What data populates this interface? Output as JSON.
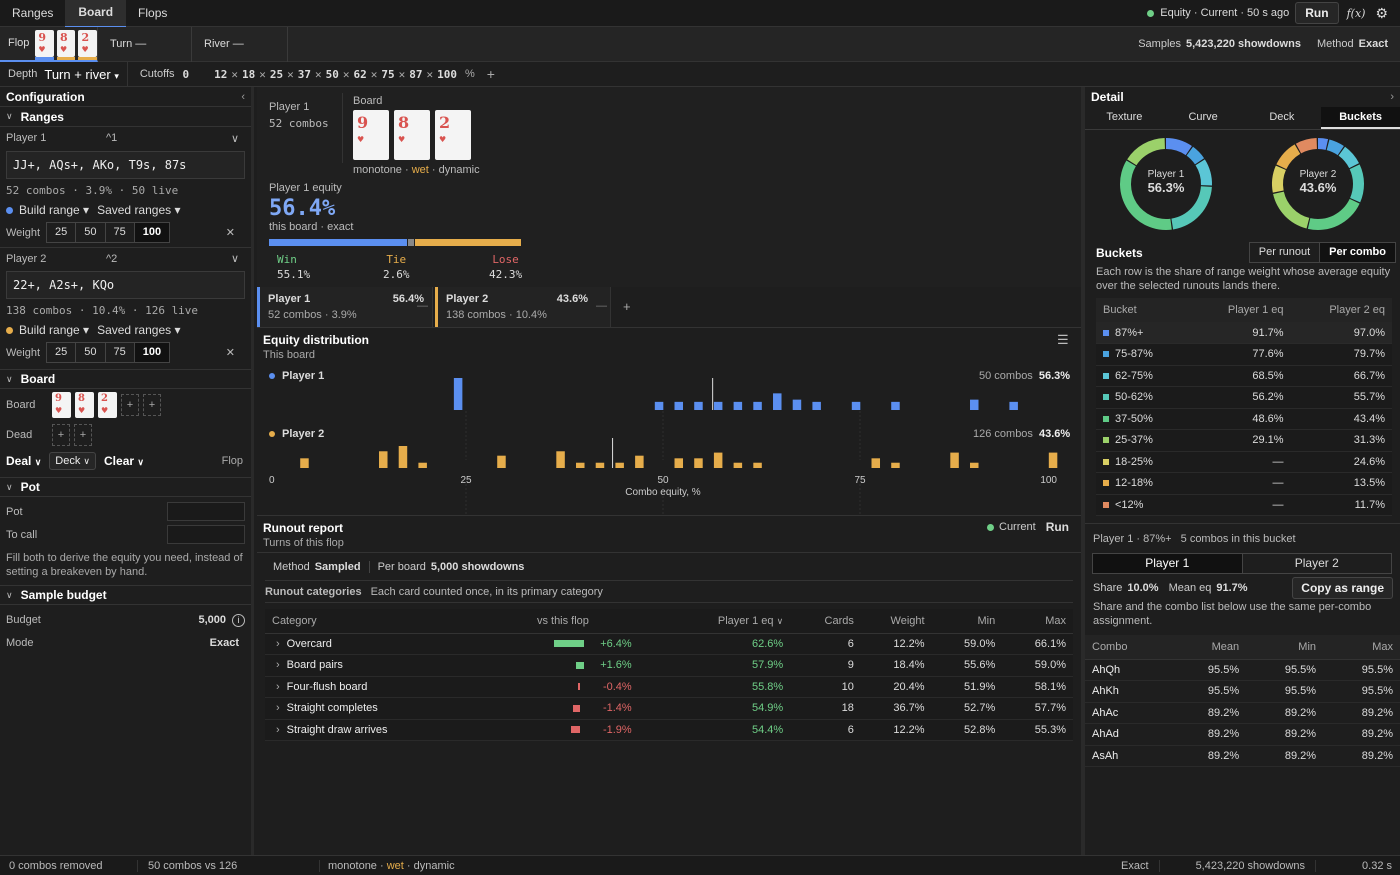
{
  "topnav": {
    "tabs": [
      "Ranges",
      "Board",
      "Flops"
    ],
    "active": "Board",
    "status": "Equity · Current · 50 s ago",
    "run": "Run",
    "fx": "f(x)"
  },
  "streets": {
    "flop": "Flop",
    "turn": "Turn —",
    "river": "River —",
    "samples_label": "Samples",
    "samples": "5,423,220 showdowns",
    "method_label": "Method",
    "method": "Exact"
  },
  "depthbar": {
    "depth_label": "Depth",
    "depth": "Turn + river",
    "cutoffs_label": "Cutoffs",
    "cutoffs": [
      "0",
      "12",
      "18",
      "25",
      "37",
      "50",
      "62",
      "75",
      "87",
      "100"
    ],
    "pct": "%"
  },
  "config": {
    "title": "Configuration",
    "ranges_title": "Ranges",
    "p1": {
      "label": "Player 1",
      "shortcut": "^1",
      "range": "JJ+, AQs+, AKo, T9s, 87s",
      "stats": "52 combos · 3.9% · 50 live",
      "dot": "#5b8ff0"
    },
    "p2": {
      "label": "Player 2",
      "shortcut": "^2",
      "range": "22+, A2s+, KQo",
      "stats": "138 combos · 10.4% · 126 live",
      "dot": "#e6ad4b"
    },
    "build": "Build range ▾",
    "saved": "Saved ranges ▾",
    "weight": "Weight",
    "weights": [
      "25",
      "50",
      "75",
      "100"
    ],
    "board_title": "Board",
    "board_label": "Board",
    "dead_label": "Dead",
    "deal": "Deal",
    "deck": "Deck",
    "clear": "Clear",
    "street": "Flop",
    "pot_title": "Pot",
    "pot_label": "Pot",
    "tocall_label": "To call",
    "pot_hint": "Fill both to derive the equity you need, instead of setting a breakeven by hand.",
    "budget_title": "Sample budget",
    "budget_label": "Budget",
    "budget": "5,000",
    "mode_label": "Mode",
    "mode": "Exact"
  },
  "cards": [
    {
      "rank": "9",
      "suit": "♥"
    },
    {
      "rank": "8",
      "suit": "♥"
    },
    {
      "rank": "2",
      "suit": "♥"
    }
  ],
  "summary": {
    "p1": "Player 1",
    "combos": "52 combos",
    "board_label": "Board",
    "texture": [
      "monotone",
      "wet",
      "dynamic"
    ],
    "eq_label": "Player 1 equity",
    "equity": "56.4%",
    "eq_sub": "this board · exact",
    "win_label": "Win",
    "win": "55.1%",
    "tie_label": "Tie",
    "tie": "2.6%",
    "lose_label": "Lose",
    "lose": "42.3%",
    "win_f": 0.551,
    "tie_f": 0.026
  },
  "players": [
    {
      "name": "Player 1",
      "eq": "56.4%",
      "sub": "52 combos · 3.9%",
      "color": "#5b8ff0"
    },
    {
      "name": "Player 2",
      "eq": "43.6%",
      "sub": "138 combos · 10.4%",
      "color": "#e6ad4b"
    }
  ],
  "dist": {
    "title": "Equity distribution",
    "sub": "This board",
    "p1": "Player 1",
    "p1_stat": "50 combos",
    "p1_eq": "56.3%",
    "p2": "Player 2",
    "p2_stat": "126 combos",
    "p2_eq": "43.6%",
    "xlabel": "Combo equity, %",
    "ticks": [
      "0",
      "25",
      "50",
      "75",
      "100"
    ]
  },
  "chart_data": {
    "type": "bar",
    "xlabel": "Combo equity, %",
    "xlim": [
      0,
      100
    ],
    "series": [
      {
        "name": "Player 1",
        "mean": 56.3,
        "bins": [
          [
            24,
            1.0
          ],
          [
            49.5,
            0.22
          ],
          [
            52,
            0.22
          ],
          [
            54.5,
            0.22
          ],
          [
            57,
            0.22
          ],
          [
            59.5,
            0.22
          ],
          [
            62,
            0.22
          ],
          [
            64.5,
            0.45
          ],
          [
            67,
            0.28
          ],
          [
            69.5,
            0.22
          ],
          [
            74.5,
            0.22
          ],
          [
            79.5,
            0.22
          ],
          [
            89.5,
            0.28
          ],
          [
            94.5,
            0.22
          ]
        ]
      },
      {
        "name": "Player 2",
        "mean": 43.6,
        "bins": [
          [
            4.5,
            0.22
          ],
          [
            14.5,
            0.38
          ],
          [
            17,
            0.5
          ],
          [
            19.5,
            0.12
          ],
          [
            29.5,
            0.28
          ],
          [
            37,
            0.38
          ],
          [
            39.5,
            0.12
          ],
          [
            42,
            0.12
          ],
          [
            44.5,
            0.12
          ],
          [
            47,
            0.28
          ],
          [
            52,
            0.22
          ],
          [
            54.5,
            0.22
          ],
          [
            57,
            0.35
          ],
          [
            59.5,
            0.12
          ],
          [
            62,
            0.12
          ],
          [
            77,
            0.22
          ],
          [
            79.5,
            0.12
          ],
          [
            87,
            0.35
          ],
          [
            89.5,
            0.12
          ],
          [
            99.5,
            0.35
          ]
        ]
      }
    ]
  },
  "runout": {
    "title": "Runout report",
    "sub": "Turns of this flop",
    "current": "Current",
    "run": "Run",
    "method_label": "Method",
    "method": "Sampled",
    "perboard_label": "Per board",
    "perboard": "5,000 showdowns",
    "cat_label": "Runout categories",
    "cat_note": "Each card counted once, in its primary category",
    "headers": [
      "Category",
      "vs this flop",
      "Player 1 eq",
      "Cards",
      "Weight",
      "Min",
      "Max"
    ],
    "rows": [
      {
        "cat": "Overcard",
        "delta": "+6.4%",
        "dv": 6.4,
        "eq": "62.6%",
        "cards": "6",
        "weight": "12.2%",
        "min": "59.0%",
        "max": "66.1%"
      },
      {
        "cat": "Board pairs",
        "delta": "+1.6%",
        "dv": 1.6,
        "eq": "57.9%",
        "cards": "9",
        "weight": "18.4%",
        "min": "55.6%",
        "max": "59.0%"
      },
      {
        "cat": "Four-flush board",
        "delta": "-0.4%",
        "dv": -0.4,
        "eq": "55.8%",
        "cards": "10",
        "weight": "20.4%",
        "min": "51.9%",
        "max": "58.1%"
      },
      {
        "cat": "Straight completes",
        "delta": "-1.4%",
        "dv": -1.4,
        "eq": "54.9%",
        "cards": "18",
        "weight": "36.7%",
        "min": "52.7%",
        "max": "57.7%"
      },
      {
        "cat": "Straight draw arrives",
        "delta": "-1.9%",
        "dv": -1.9,
        "eq": "54.4%",
        "cards": "6",
        "weight": "12.2%",
        "min": "52.8%",
        "max": "55.3%"
      }
    ]
  },
  "detail": {
    "title": "Detail",
    "tabs": [
      "Texture",
      "Curve",
      "Deck",
      "Buckets"
    ],
    "active": "Buckets",
    "donut1": {
      "name": "Player 1",
      "value": "56.3%"
    },
    "donut2": {
      "name": "Player 2",
      "value": "43.6%"
    },
    "buckets_title": "Buckets",
    "per_runout": "Per runout",
    "per_combo": "Per combo",
    "note": "Each row is the share of range weight whose average equity over the selected runouts lands there.",
    "bheaders": [
      "Bucket",
      "Player 1 eq",
      "Player 2 eq"
    ],
    "buckets": [
      {
        "b": "87%+",
        "p1": "91.7%",
        "p2": "97.0%",
        "c": "#5b8ff0",
        "w1": 0.1,
        "w2": 0.04
      },
      {
        "b": "75-87%",
        "p1": "77.6%",
        "p2": "79.7%",
        "c": "#4aa3df",
        "w1": 0.06,
        "w2": 0.06
      },
      {
        "b": "62-75%",
        "p1": "68.5%",
        "p2": "66.7%",
        "c": "#5bc6d6",
        "w1": 0.1,
        "w2": 0.08
      },
      {
        "b": "50-62%",
        "p1": "56.2%",
        "p2": "55.7%",
        "c": "#56c8b8",
        "w1": 0.22,
        "w2": 0.14
      },
      {
        "b": "37-50%",
        "p1": "48.6%",
        "p2": "43.4%",
        "c": "#5fcb86",
        "w1": 0.36,
        "w2": 0.22
      },
      {
        "b": "25-37%",
        "p1": "29.1%",
        "p2": "31.3%",
        "c": "#9bd16a",
        "w1": 0.16,
        "w2": 0.18
      },
      {
        "b": "18-25%",
        "p1": "—",
        "p2": "24.6%",
        "c": "#d8cf63",
        "w1": 0,
        "w2": 0.1
      },
      {
        "b": "12-18%",
        "p1": "—",
        "p2": "13.5%",
        "c": "#e6ad4b",
        "w1": 0,
        "w2": 0.1
      },
      {
        "b": "<12%",
        "p1": "—",
        "p2": "11.7%",
        "c": "#e08a60",
        "w1": 0,
        "w2": 0.08
      }
    ],
    "sel_title": "Player 1 · 87%+",
    "sel_sub": "5 combos in this bucket",
    "ptab1": "Player 1",
    "ptab2": "Player 2",
    "share_label": "Share",
    "share": "10.0%",
    "mean_label": "Mean eq",
    "mean": "91.7%",
    "copy": "Copy as range",
    "share_note": "Share and the combo list below use the same per-combo assignment.",
    "cheaders": [
      "Combo",
      "Mean",
      "Min",
      "Max"
    ],
    "combos": [
      [
        "AhQh",
        "95.5%",
        "95.5%",
        "95.5%"
      ],
      [
        "AhKh",
        "95.5%",
        "95.5%",
        "95.5%"
      ],
      [
        "AhAc",
        "89.2%",
        "89.2%",
        "89.2%"
      ],
      [
        "AhAd",
        "89.2%",
        "89.2%",
        "89.2%"
      ],
      [
        "AsAh",
        "89.2%",
        "89.2%",
        "89.2%"
      ]
    ]
  },
  "statusbar": {
    "removed": "0 combos removed",
    "vs": "50 combos vs 126",
    "texture": [
      "monotone",
      "wet",
      "dynamic"
    ],
    "mode": "Exact",
    "showdowns": "5,423,220 showdowns",
    "time": "0.32 s"
  }
}
